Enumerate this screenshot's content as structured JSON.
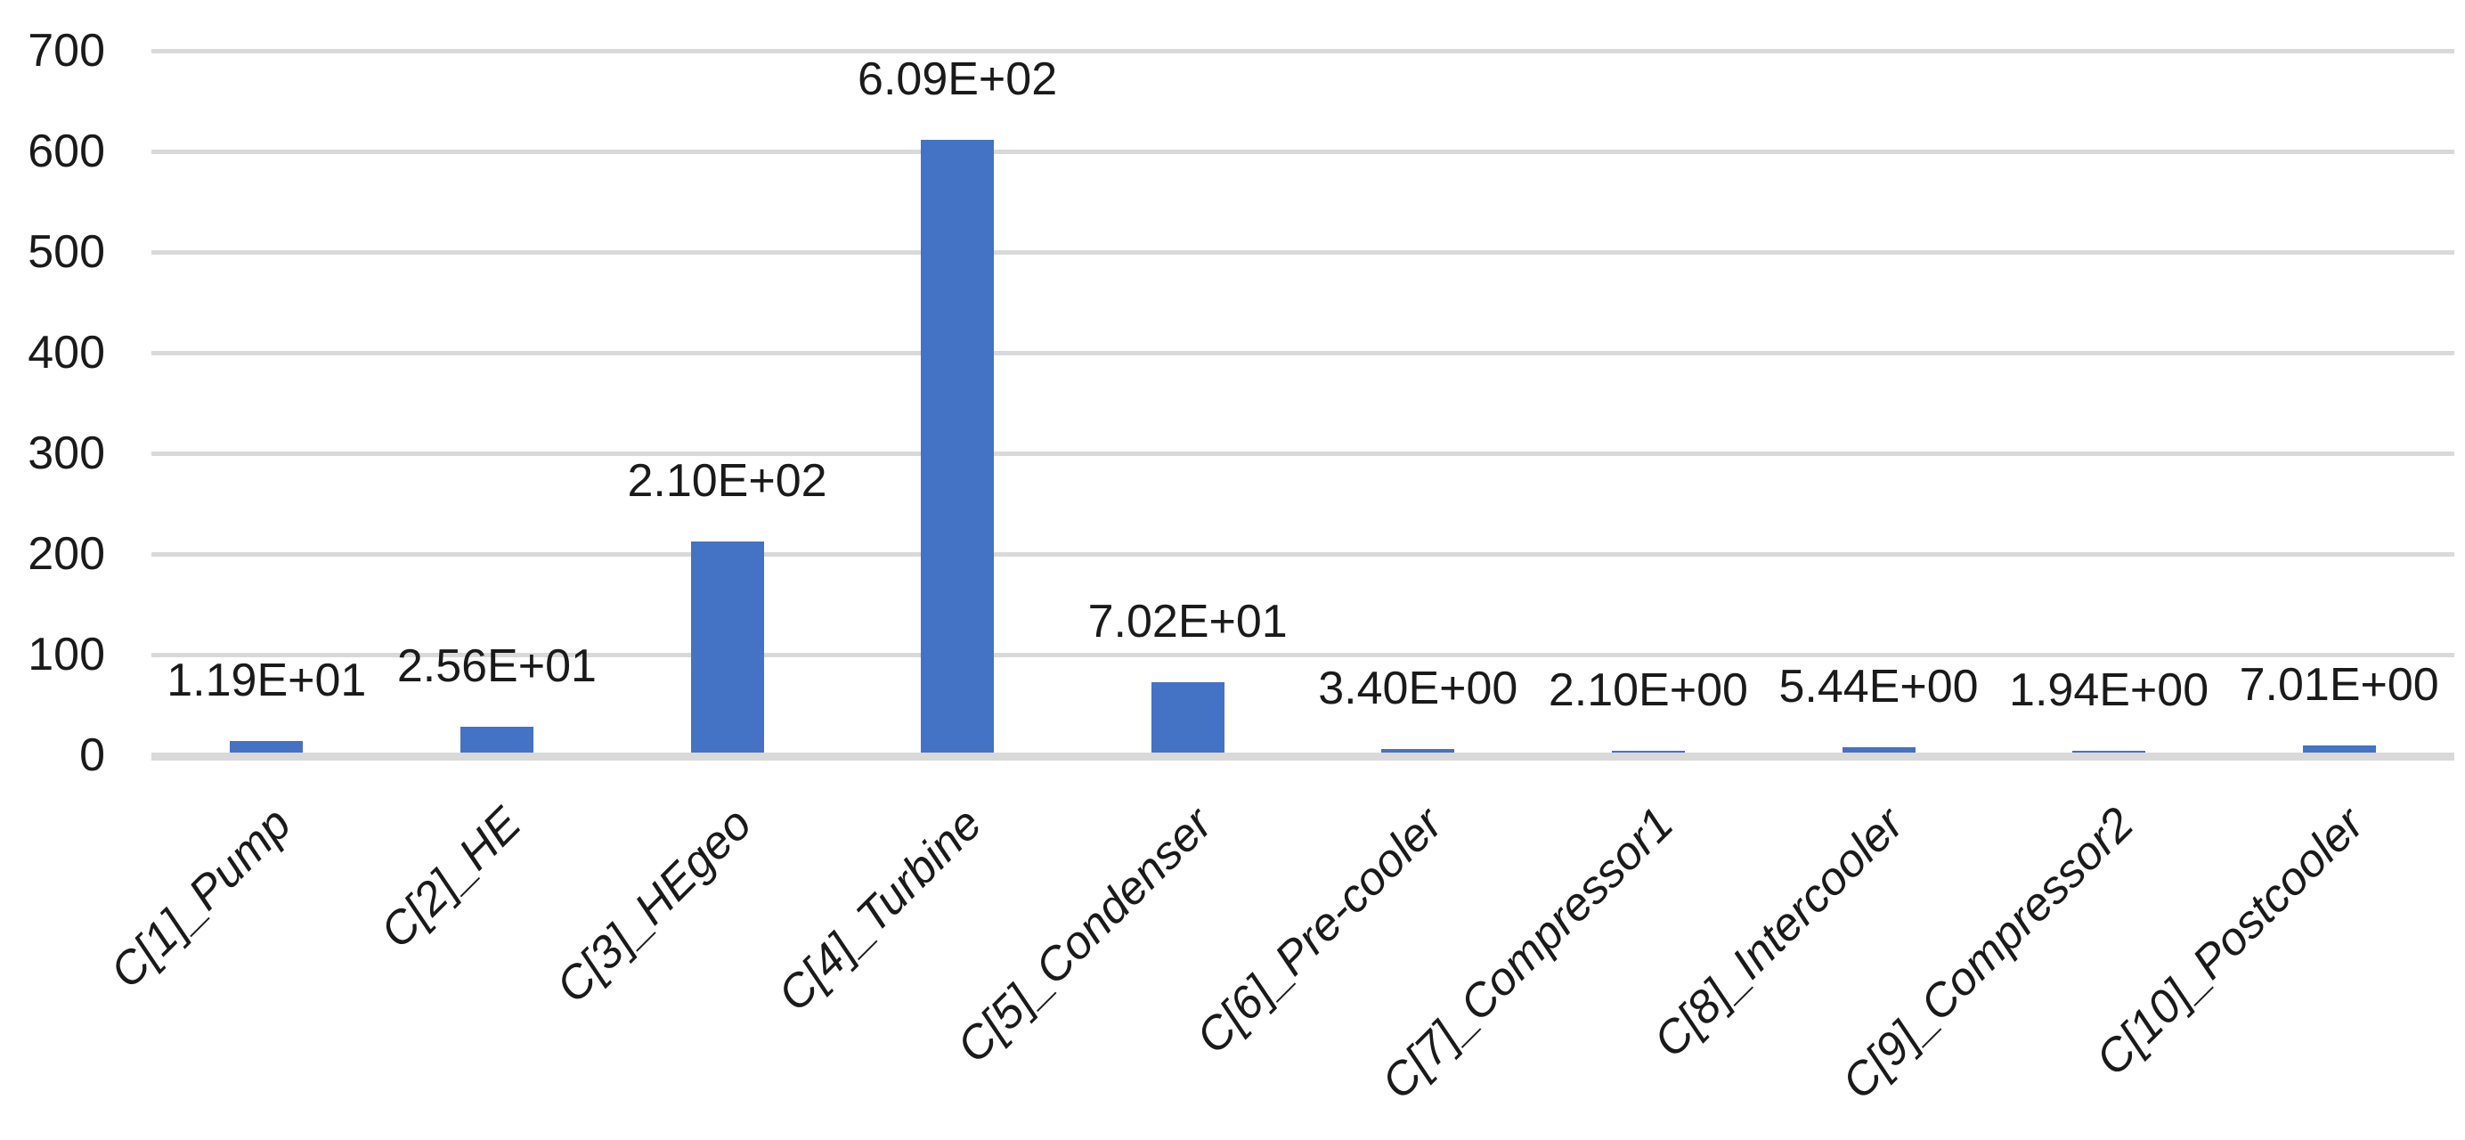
{
  "chart_data": {
    "type": "bar",
    "title": "",
    "xlabel": "",
    "ylabel": "",
    "categories": [
      "C[1]_Pump",
      "C[2]_HE",
      "C[3]_HEgeo",
      "C[4]_Turbine",
      "C[5]_Condenser",
      "C[6]_Pre-cooler",
      "C[7]_Compressor1",
      "C[8]_Intercooler",
      "C[9]_Compressor2",
      "C[10]_Postcooler"
    ],
    "values": [
      11.9,
      25.6,
      210,
      609,
      70.2,
      3.4,
      2.1,
      5.44,
      1.94,
      7.01
    ],
    "data_labels": [
      "1.19E+01",
      "2.56E+01",
      "2.10E+02",
      "6.09E+02",
      "7.02E+01",
      "3.40E+00",
      "2.10E+00",
      "5.44E+00",
      "1.94E+00",
      "7.01E+00"
    ],
    "ylim": [
      0,
      700
    ],
    "yticks": [
      0,
      100,
      200,
      300,
      400,
      500,
      600,
      700
    ],
    "grid": true,
    "legend": false,
    "colors": {
      "bar": "#4472C4",
      "gridline": "#D9D9D9",
      "axis_line": "#D9D9D9",
      "text": "#1A1A1A"
    }
  }
}
